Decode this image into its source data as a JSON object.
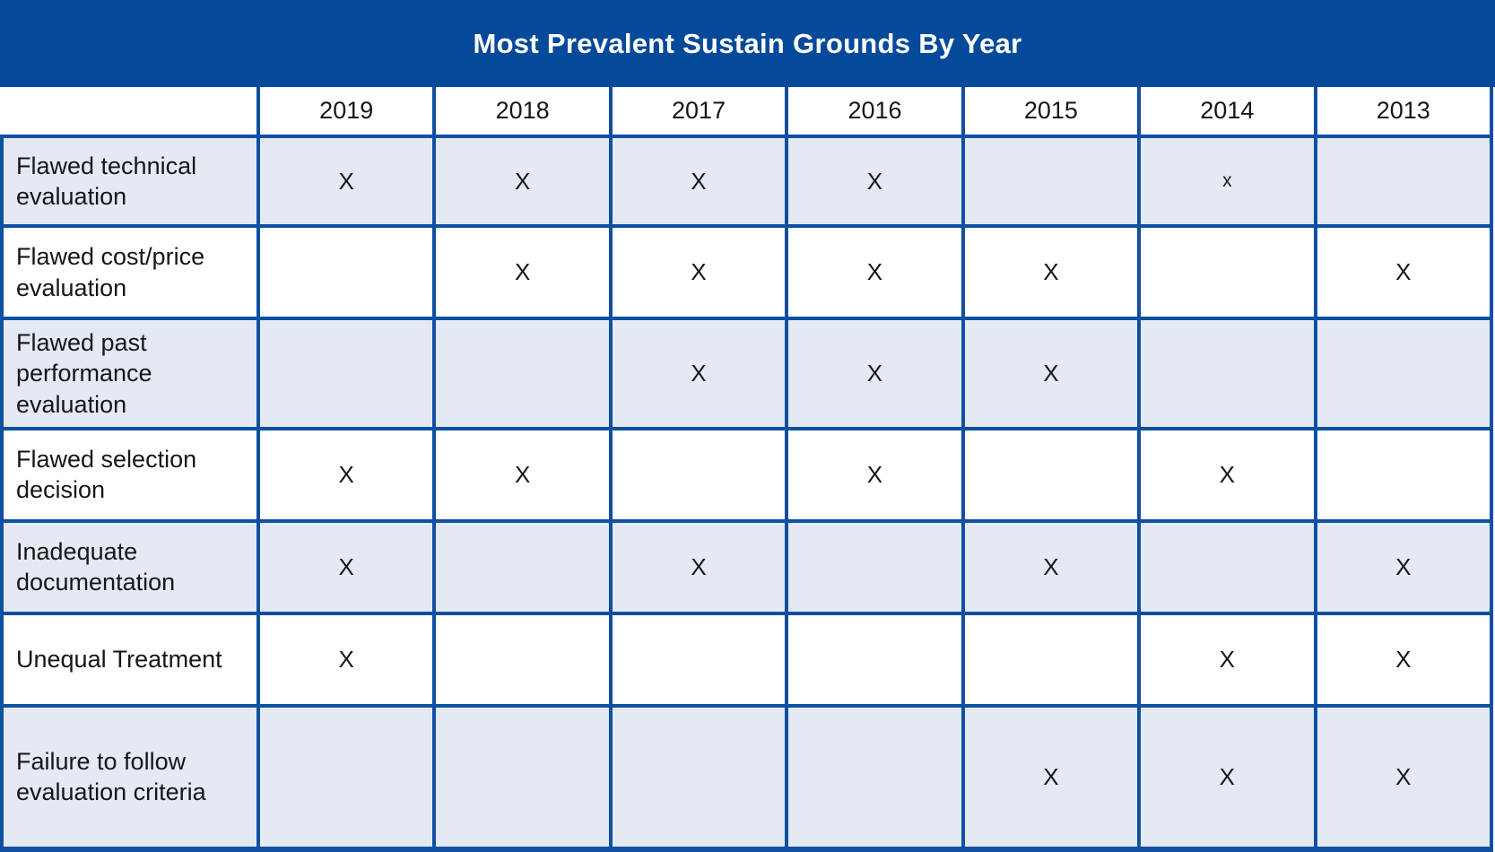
{
  "title": "Most Prevalent Sustain Grounds By Year",
  "colors": {
    "title_band": "#05499A",
    "grid_lines": "#0F50A1",
    "alt_row_background": "#E4E9F4",
    "plain_row_background": "#FFFFFF",
    "title_text": "#FFFFFF",
    "body_text": "#161616"
  },
  "chart_data": {
    "type": "table",
    "title": "Most Prevalent Sustain Grounds By Year",
    "columns": [
      "",
      "2019",
      "2018",
      "2017",
      "2016",
      "2015",
      "2014",
      "2013"
    ],
    "rows": [
      {
        "label": "Flawed technical evaluation",
        "marks": [
          "X",
          "X",
          "X",
          "X",
          "",
          "x",
          ""
        ]
      },
      {
        "label": "Flawed cost/price evaluation",
        "marks": [
          "",
          "X",
          "X",
          "X",
          "X",
          "",
          "X"
        ]
      },
      {
        "label": "Flawed past performance evaluation",
        "marks": [
          "",
          "",
          "X",
          "X",
          "X",
          "",
          ""
        ]
      },
      {
        "label": "Flawed selection decision",
        "marks": [
          "X",
          "X",
          "",
          "X",
          "",
          "X",
          ""
        ]
      },
      {
        "label": "Inadequate documentation",
        "marks": [
          "X",
          "",
          "X",
          "",
          "X",
          "",
          "X"
        ]
      },
      {
        "label": "Unequal Treatment",
        "marks": [
          "X",
          "",
          "",
          "",
          "",
          "X",
          "X"
        ]
      },
      {
        "label": "Failure to follow evaluation criteria",
        "marks": [
          "",
          "",
          "",
          "",
          "X",
          "X",
          "X"
        ]
      }
    ],
    "layout": {
      "legend": "none",
      "grid": "on",
      "striped_rows": "odd rows shaded light blue",
      "mark_symbol": "X"
    }
  }
}
